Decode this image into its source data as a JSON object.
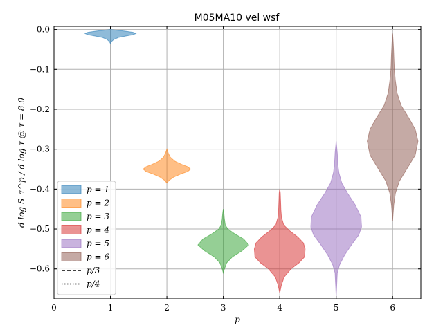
{
  "chart_data": {
    "type": "violin",
    "title": "M05MA10 vel wsf",
    "xlabel": "p",
    "ylabel": "d log S_τ^p / d log τ @ τ = 8.0",
    "xlim": [
      0,
      6.5
    ],
    "ylim": [
      -0.675,
      0.008
    ],
    "xticks": [
      0,
      1,
      2,
      3,
      4,
      5,
      6
    ],
    "yticks": [
      0.0,
      -0.1,
      -0.2,
      -0.3,
      -0.4,
      -0.5,
      -0.6
    ],
    "ytick_labels": [
      "0.0",
      "−0.1",
      "−0.2",
      "−0.3",
      "−0.4",
      "−0.5",
      "−0.6"
    ],
    "grid": true,
    "legend_position": "lower-left",
    "series": [
      {
        "name": "p = 1",
        "x": 1,
        "color": "#1f77b4",
        "min": -0.035,
        "max": 0.0,
        "profile": [
          [
            -0.035,
            0.0
          ],
          [
            -0.03,
            0.02
          ],
          [
            -0.025,
            0.06
          ],
          [
            -0.02,
            0.14
          ],
          [
            -0.016,
            0.28
          ],
          [
            -0.013,
            0.4
          ],
          [
            -0.01,
            0.45
          ],
          [
            -0.007,
            0.4
          ],
          [
            -0.004,
            0.25
          ],
          [
            -0.002,
            0.12
          ],
          [
            0.0,
            0.0
          ]
        ]
      },
      {
        "name": "p = 2",
        "x": 2,
        "color": "#ff7f0e",
        "min": -0.385,
        "max": -0.3,
        "profile": [
          [
            -0.385,
            0.0
          ],
          [
            -0.378,
            0.04
          ],
          [
            -0.37,
            0.12
          ],
          [
            -0.362,
            0.25
          ],
          [
            -0.356,
            0.37
          ],
          [
            -0.35,
            0.42
          ],
          [
            -0.344,
            0.37
          ],
          [
            -0.338,
            0.26
          ],
          [
            -0.33,
            0.14
          ],
          [
            -0.32,
            0.06
          ],
          [
            -0.31,
            0.025
          ],
          [
            -0.3,
            0.0
          ]
        ]
      },
      {
        "name": "p = 3",
        "x": 3,
        "color": "#2ca02c",
        "min": -0.61,
        "max": -0.45,
        "profile": [
          [
            -0.61,
            0.0
          ],
          [
            -0.6,
            0.02
          ],
          [
            -0.585,
            0.06
          ],
          [
            -0.57,
            0.16
          ],
          [
            -0.555,
            0.33
          ],
          [
            -0.54,
            0.45
          ],
          [
            -0.525,
            0.36
          ],
          [
            -0.512,
            0.2
          ],
          [
            -0.5,
            0.08
          ],
          [
            -0.49,
            0.035
          ],
          [
            -0.475,
            0.02
          ],
          [
            -0.46,
            0.01
          ],
          [
            -0.45,
            0.0
          ]
        ]
      },
      {
        "name": "p = 4",
        "x": 4,
        "color": "#d62728",
        "min": -0.66,
        "max": -0.4,
        "profile": [
          [
            -0.66,
            0.0
          ],
          [
            -0.64,
            0.03
          ],
          [
            -0.62,
            0.08
          ],
          [
            -0.6,
            0.2
          ],
          [
            -0.585,
            0.34
          ],
          [
            -0.57,
            0.44
          ],
          [
            -0.55,
            0.45
          ],
          [
            -0.535,
            0.42
          ],
          [
            -0.52,
            0.32
          ],
          [
            -0.505,
            0.18
          ],
          [
            -0.49,
            0.07
          ],
          [
            -0.47,
            0.03
          ],
          [
            -0.45,
            0.02
          ],
          [
            -0.43,
            0.015
          ],
          [
            -0.41,
            0.01
          ],
          [
            -0.4,
            0.0
          ]
        ]
      },
      {
        "name": "p = 5",
        "x": 5,
        "color": "#9467bd",
        "min": -0.67,
        "max": -0.28,
        "profile": [
          [
            -0.67,
            0.0
          ],
          [
            -0.64,
            0.01
          ],
          [
            -0.61,
            0.02
          ],
          [
            -0.59,
            0.06
          ],
          [
            -0.565,
            0.15
          ],
          [
            -0.54,
            0.27
          ],
          [
            -0.515,
            0.4
          ],
          [
            -0.495,
            0.45
          ],
          [
            -0.47,
            0.44
          ],
          [
            -0.44,
            0.34
          ],
          [
            -0.41,
            0.2
          ],
          [
            -0.385,
            0.1
          ],
          [
            -0.36,
            0.05
          ],
          [
            -0.34,
            0.03
          ],
          [
            -0.31,
            0.02
          ],
          [
            -0.28,
            0.0
          ]
        ]
      },
      {
        "name": "p = 6",
        "x": 6,
        "color": "#8c564b",
        "min": -0.48,
        "max": -0.01,
        "profile": [
          [
            -0.48,
            0.0
          ],
          [
            -0.44,
            0.02
          ],
          [
            -0.41,
            0.05
          ],
          [
            -0.38,
            0.12
          ],
          [
            -0.35,
            0.25
          ],
          [
            -0.315,
            0.4
          ],
          [
            -0.28,
            0.45
          ],
          [
            -0.25,
            0.4
          ],
          [
            -0.22,
            0.28
          ],
          [
            -0.19,
            0.15
          ],
          [
            -0.16,
            0.08
          ],
          [
            -0.13,
            0.05
          ],
          [
            -0.1,
            0.03
          ],
          [
            -0.06,
            0.02
          ],
          [
            -0.03,
            0.01
          ],
          [
            -0.01,
            0.0
          ]
        ]
      }
    ],
    "reference_lines": [
      {
        "name": "p/3",
        "style": "dashed"
      },
      {
        "name": "p/4",
        "style": "dotted"
      }
    ]
  }
}
